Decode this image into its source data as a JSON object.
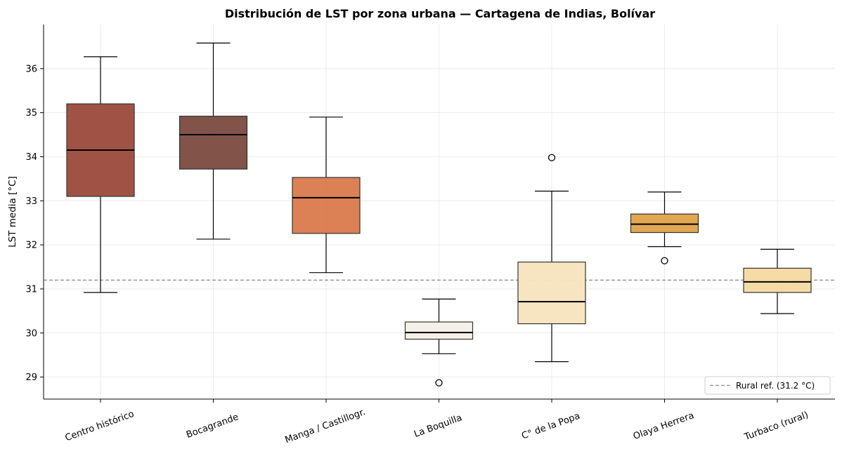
{
  "chart_data": {
    "type": "boxplot",
    "title": "Distribución de LST por zona urbana — Cartagena de Indias, Bolívar",
    "xlabel": "",
    "ylabel": "LST media [°C]",
    "ylim": [
      28.5,
      37.0
    ],
    "yticks": [
      29,
      30,
      31,
      32,
      33,
      34,
      35,
      36
    ],
    "grid": true,
    "legend_position": "bottom-right",
    "reference_line": {
      "label": "Rural ref. (31.2 °C)",
      "value": 31.2,
      "color": "#888888"
    },
    "categories": [
      "Centro histórico",
      "Bocagrande",
      "Manga / Castillogr.",
      "La Boquilla",
      "C° de la Popa",
      "Olaya Herrera",
      "Turbaco (rural)"
    ],
    "boxes": [
      {
        "name": "Centro histórico",
        "whisker_low": 30.92,
        "q1": 33.1,
        "median": 34.15,
        "q3": 35.2,
        "whisker_high": 36.27,
        "outliers": [],
        "color": "#9b4a3a"
      },
      {
        "name": "Bocagrande",
        "whisker_low": 32.13,
        "q1": 33.72,
        "median": 34.5,
        "q3": 34.92,
        "whisker_high": 36.58,
        "outliers": [],
        "color": "#7b4a3e"
      },
      {
        "name": "Manga / Castillogr.",
        "whisker_low": 31.37,
        "q1": 32.26,
        "median": 33.07,
        "q3": 33.53,
        "whisker_high": 34.9,
        "outliers": [],
        "color": "#d97a4c"
      },
      {
        "name": "La Boquilla",
        "whisker_low": 29.53,
        "q1": 29.86,
        "median": 30.01,
        "q3": 30.25,
        "whisker_high": 30.77,
        "outliers": [
          28.87
        ],
        "color": "#f6f0e6"
      },
      {
        "name": "C° de la Popa",
        "whisker_low": 29.35,
        "q1": 30.21,
        "median": 30.71,
        "q3": 31.61,
        "whisker_high": 33.22,
        "outliers": [
          33.98
        ],
        "color": "#f7e4bf"
      },
      {
        "name": "Olaya Herrera",
        "whisker_low": 31.96,
        "q1": 32.28,
        "median": 32.47,
        "q3": 32.7,
        "whisker_high": 33.2,
        "outliers": [
          31.64
        ],
        "color": "#e0a24a"
      },
      {
        "name": "Turbaco (rural)",
        "whisker_low": 30.44,
        "q1": 30.92,
        "median": 31.16,
        "q3": 31.47,
        "whisker_high": 31.9,
        "outliers": [],
        "color": "#f4d9a0"
      }
    ]
  }
}
